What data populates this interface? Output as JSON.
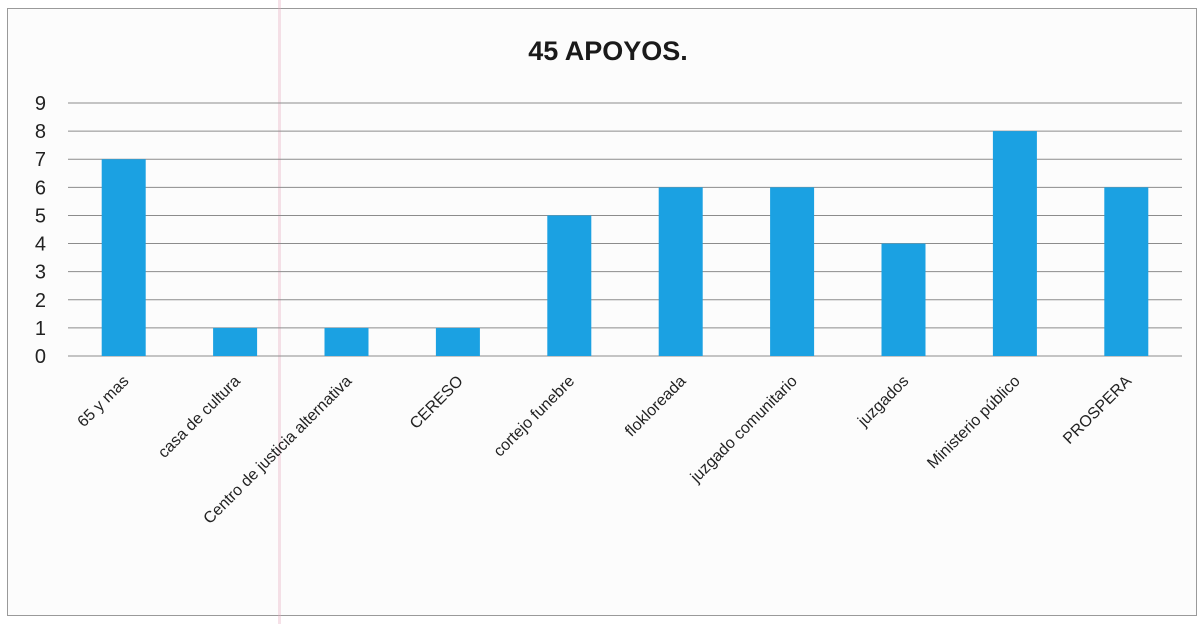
{
  "chart_data": {
    "type": "bar",
    "title": "45 APOYOS.",
    "categories": [
      "65 y mas",
      "casa de cultura",
      "Centro de justicia alternativa",
      "CERESO",
      "cortejo funebre",
      "flokloreada",
      "juzgado comunitario",
      "juzgados",
      "Ministerio público",
      "PROSPERA"
    ],
    "values": [
      7,
      1,
      1,
      1,
      5,
      6,
      6,
      4,
      8,
      6
    ],
    "ylim": [
      0,
      9
    ],
    "yticks": [
      0,
      1,
      2,
      3,
      4,
      5,
      6,
      7,
      8,
      9
    ],
    "grid": true,
    "legend": "none",
    "bar_color": "#1ba1e2",
    "grid_color": "#8c8c8c"
  }
}
